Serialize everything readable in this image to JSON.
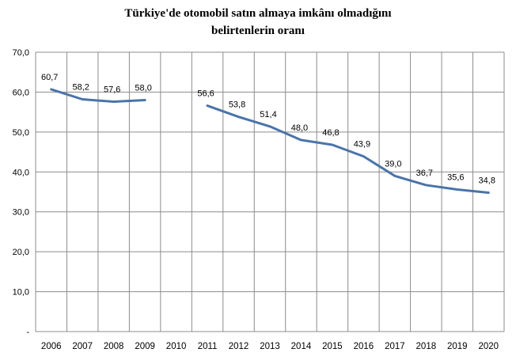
{
  "chart_data": {
    "type": "line",
    "title_line1": "Türkiye'de otomobil satın almaya imkânı olmadığını",
    "title_line2": "belirtenlerin oranı",
    "xlabel": "",
    "ylabel": "",
    "categories": [
      "2006",
      "2007",
      "2008",
      "2009",
      "2010",
      "2011",
      "2012",
      "2013",
      "2014",
      "2015",
      "2016",
      "2017",
      "2018",
      "2019",
      "2020"
    ],
    "series": [
      {
        "values": [
          60.7,
          58.2,
          57.6,
          58.0,
          null,
          56.6,
          53.8,
          51.4,
          48.0,
          46.8,
          43.9,
          39.0,
          36.7,
          35.6,
          34.8
        ],
        "labels": [
          "60,7",
          "58,2",
          "57,6",
          "58,0",
          "",
          "56,6",
          "53,8",
          "51,4",
          "48,0",
          "46,8",
          "43,9",
          "39,0",
          "36,7",
          "35,6",
          "34,8"
        ],
        "color": "#4a74a8"
      }
    ],
    "ylim": [
      0,
      70
    ],
    "yticks": [
      0,
      10,
      20,
      30,
      40,
      50,
      60,
      70
    ],
    "ytick_labels": [
      "-",
      "10,0",
      "20,0",
      "30,0",
      "40,0",
      "50,0",
      "60,0",
      "70,0"
    ],
    "grid": true,
    "legend": "none"
  }
}
